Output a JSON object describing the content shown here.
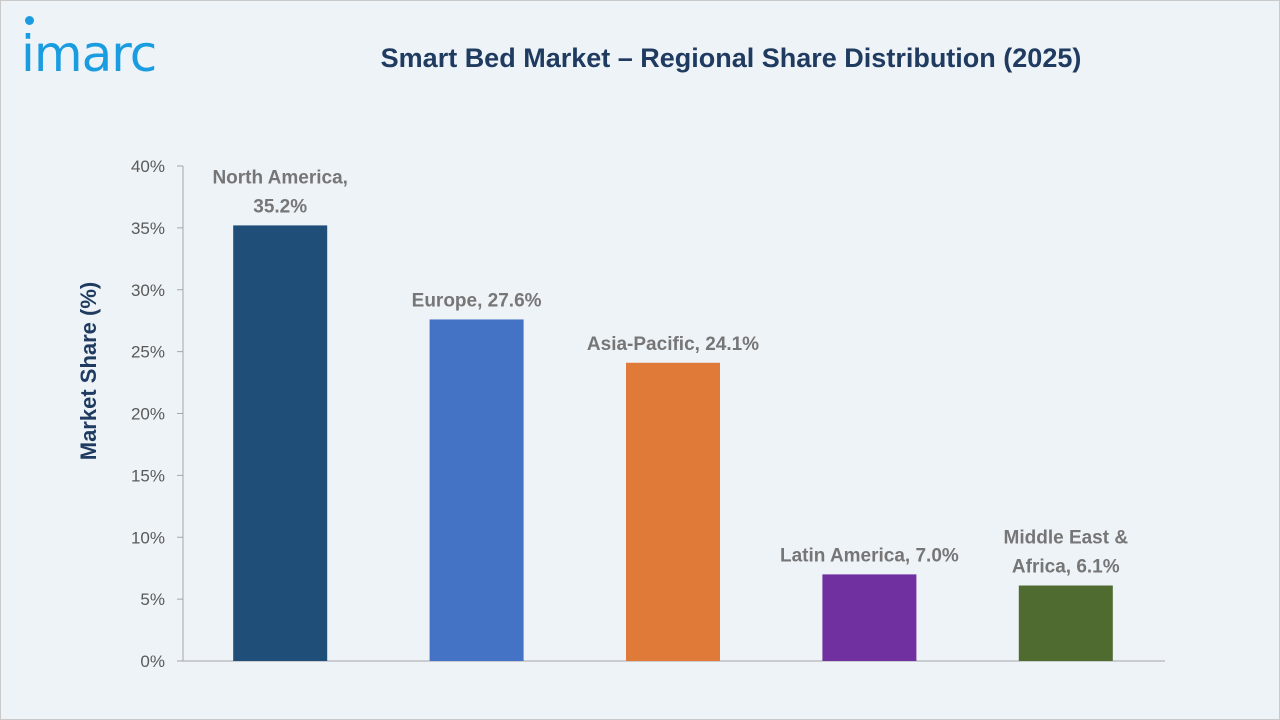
{
  "logo": {
    "text": "imarc"
  },
  "chart_data": {
    "type": "bar",
    "title": "Smart Bed Market – Regional Share Distribution (2025)",
    "ylabel": "Market Share (%)",
    "xlabel": "",
    "ylim": [
      0,
      40
    ],
    "yticks": [
      "0%",
      "5%",
      "10%",
      "15%",
      "20%",
      "25%",
      "30%",
      "35%",
      "40%"
    ],
    "grid": false,
    "categories": [
      "North America",
      "Europe",
      "Asia-Pacific",
      "Latin America",
      "Middle East & Africa"
    ],
    "values": [
      35.2,
      27.6,
      24.1,
      7.0,
      6.1
    ],
    "data_labels": [
      [
        "North America,",
        "35.2%"
      ],
      [
        "Europe, 27.6%"
      ],
      [
        "Asia-Pacific, 24.1%"
      ],
      [
        "Latin America, 7.0%"
      ],
      [
        "Middle East &",
        "Africa, 6.1%"
      ]
    ],
    "colors": [
      "#1f4e79",
      "#4472c4",
      "#e07a38",
      "#7030a0",
      "#4f6b2f"
    ]
  }
}
